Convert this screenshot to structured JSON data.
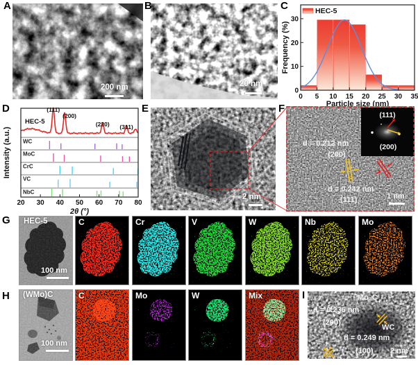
{
  "labels": {
    "a": "A",
    "b": "B",
    "c": "C",
    "d": "D",
    "e": "E",
    "f": "F",
    "g": "G",
    "h": "H",
    "i": "I"
  },
  "panelA": {
    "scale_bar": "200 nm"
  },
  "panelB": {
    "scale_bar": "20 nm"
  },
  "panelE": {
    "scale_bar": "2 nm"
  },
  "panelF": {
    "d1": "d = 0.212 nm",
    "d1_plane": "(200)",
    "d2": "d = 0.242 nm",
    "d2_plane": "(111)",
    "fft_top": "(111)",
    "fft_bottom": "(200)",
    "scale_bar": "1 nm"
  },
  "panelG": {
    "sample_label": "HEC-5",
    "scale_bar": "100 nm",
    "elements": [
      {
        "label": "C",
        "color": "#ff2a1a"
      },
      {
        "label": "Cr",
        "color": "#2ee8e8"
      },
      {
        "label": "V",
        "color": "#25d93c"
      },
      {
        "label": "W",
        "color": "#86e02a"
      },
      {
        "label": "Nb",
        "color": "#e8e020"
      },
      {
        "label": "Mo",
        "color": "#f08524"
      }
    ]
  },
  "panelH": {
    "sample_label": "(WMo)C",
    "scale_bar": "100 nm",
    "elements": [
      {
        "label": "C",
        "color": "#e8380e"
      },
      {
        "label": "Mo",
        "color": "#c52fe8"
      },
      {
        "label": "W",
        "color": "#1fe878"
      },
      {
        "label": "Mix",
        "color": "#d8330f"
      }
    ]
  },
  "panelI": {
    "phase1": "Mo₂C",
    "d1": "d = 0.236 nm",
    "d1_plane": "(200)",
    "phase2": "WC",
    "d2": "d = 0.249 nm",
    "d2_plane": "(100)",
    "scale_bar": "2 nm"
  },
  "chart_data": [
    {
      "id": "particle-size-histogram",
      "type": "bar",
      "title": "",
      "legend": [
        "HEC-5"
      ],
      "xlabel": "Particle size (nm)",
      "ylabel": "Frequency (%)",
      "xlim": [
        0,
        35
      ],
      "ylim": [
        0,
        35.8
      ],
      "xticks": [
        0,
        5,
        10,
        15,
        20,
        25,
        30,
        35
      ],
      "yticks": [
        0,
        10,
        20,
        30
      ],
      "bin_edges": [
        0,
        5,
        10,
        15,
        20,
        25,
        30,
        35
      ],
      "values": [
        2,
        29.5,
        29.5,
        27.5,
        6.5,
        2,
        2
      ],
      "fit_curve": {
        "type": "gaussian",
        "mean": 13.5,
        "sd": 5.2,
        "peak": 29.5,
        "color": "#5f8ddd"
      },
      "bar_color_top": "#ec3c31",
      "bar_color_bottom": "#fceadb"
    },
    {
      "id": "xrd-patterns",
      "type": "line",
      "xlabel": "2θ (°)",
      "ylabel": "Intensity (a.u.)",
      "xlim": [
        20,
        80
      ],
      "xticks": [
        20,
        30,
        40,
        50,
        60,
        70,
        80
      ],
      "series_label": "HEC-5",
      "trace_color": "#e8251f",
      "hec5_peaks": [
        {
          "two_theta": 36.6,
          "height": 1.0,
          "label": "(111)"
        },
        {
          "two_theta": 42.4,
          "height": 0.82,
          "label": "(200)"
        },
        {
          "two_theta": 61.8,
          "height": 0.42,
          "label": "(220)"
        },
        {
          "two_theta": 74.0,
          "height": 0.3,
          "label": "(311)"
        },
        {
          "two_theta": 78.6,
          "height": 0.18,
          "label": ""
        }
      ],
      "broad_hump": {
        "center": 25,
        "height": 0.18,
        "width": 4.5
      },
      "references": [
        {
          "label": "WC",
          "color": "#a86ae0",
          "peaks": [
            34.7,
            40.5,
            57.9,
            69.0,
            71.8
          ],
          "heights": [
            1,
            0.55,
            0.5,
            0.55,
            0.4
          ]
        },
        {
          "label": "MoC",
          "color": "#f050b4",
          "peaks": [
            36.7,
            42.2,
            60.8,
            72.0,
            75.5
          ],
          "heights": [
            1,
            0.75,
            0.6,
            0.5,
            0.45
          ]
        },
        {
          "label": "CrC",
          "color": "#45d9f2",
          "peaks": [
            40.0,
            46.3,
            67.3,
            79.9
          ],
          "heights": [
            1,
            0.9,
            0.6,
            0.55
          ]
        },
        {
          "label": "VC",
          "color": "#72cdf2",
          "peaks": [
            39.1,
            45.2,
            65.5,
            79.3
          ],
          "heights": [
            0.9,
            1,
            0.5,
            0.5
          ]
        },
        {
          "label": "NbC",
          "color": "#7fe37f",
          "peaks": [
            35.8,
            41.3,
            58.9,
            61.0,
            70.4,
            72.3
          ],
          "heights": [
            1,
            0.8,
            0.5,
            0.55,
            0.5,
            0.4
          ]
        }
      ]
    }
  ]
}
